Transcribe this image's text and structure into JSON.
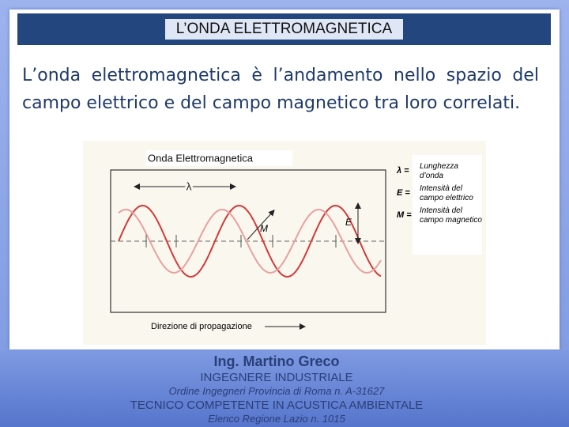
{
  "header": {
    "title": "L’ONDA ELETTROMAGNETICA"
  },
  "body": {
    "text": "L’onda elettromagnetica è l’andamento nello spazio del campo elettrico e del campo magnetico tra loro correlati."
  },
  "figure": {
    "title": "Onda Elettromagnetica",
    "labels": {
      "lambda": "λ",
      "e": "E",
      "m": "M"
    },
    "legend": [
      {
        "symbol": "λ =",
        "text": "Lunghezza d’onda"
      },
      {
        "symbol": "E =",
        "text": "Intensità del campo elettrico"
      },
      {
        "symbol": "M =",
        "text": "Intensità del campo magnetico"
      }
    ],
    "caption": "Direzione di propagazione"
  },
  "footer": {
    "lines": [
      "Ing. Martino Greco",
      "INGEGNERE INDUSTRIALE",
      "Ordine Ingegneri Provincia di Roma n. A-31627",
      "TECNICO COMPETENTE IN ACUSTICA AMBIENTALE",
      "Elenco Regione Lazio n. 1015"
    ]
  }
}
